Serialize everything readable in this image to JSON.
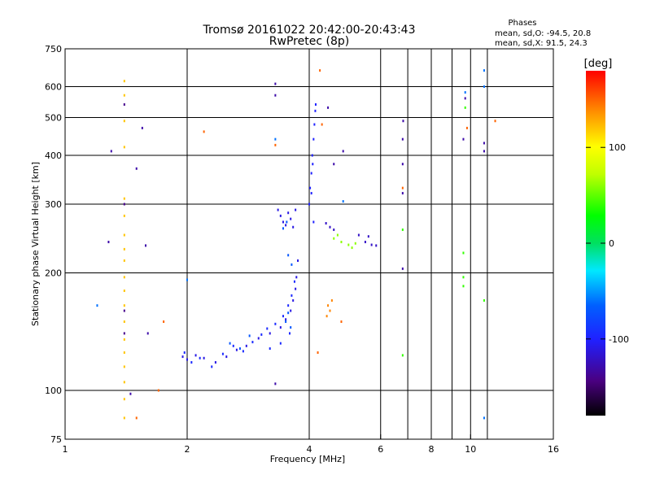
{
  "chart_data": {
    "type": "scatter",
    "title": "Tromsø 20161022 20:42:00-20:43:43",
    "subtitle": "RwPretec (8p)",
    "phase_title": "Phases",
    "phase_stats": [
      "mean, sd,O: -94.5, 20.8",
      "mean, sd,X:  91.5, 24.3"
    ],
    "xlabel": "Frequency [MHz]",
    "ylabel": "Stationary phase Virtual Height [km]",
    "xscale": "log",
    "yscale": "log",
    "xlim": [
      1,
      16
    ],
    "ylim": [
      75,
      750
    ],
    "x_ticks": [
      1,
      2,
      4,
      6,
      8,
      10,
      16
    ],
    "x_tick_labels": [
      "1",
      "2",
      "4",
      "6",
      "8",
      "10",
      "16"
    ],
    "x_grid": [
      2,
      4,
      6,
      7,
      8,
      9,
      10,
      11
    ],
    "y_ticks": [
      75,
      100,
      200,
      300,
      400,
      500,
      600,
      750
    ],
    "y_tick_labels": [
      "75",
      "100",
      "200",
      "300",
      "400",
      "500",
      "600",
      "750"
    ],
    "colorbar": {
      "label": "[deg]",
      "range": [
        -180,
        180
      ],
      "ticks": [
        100,
        0,
        -100
      ],
      "tick_labels": [
        "100",
        "0",
        "-100"
      ]
    },
    "series": [
      {
        "name": "dense_trace_low",
        "phase": -110,
        "points": [
          [
            1.95,
            122
          ],
          [
            2.0,
            120
          ],
          [
            2.1,
            123
          ],
          [
            2.2,
            121
          ],
          [
            2.35,
            118
          ],
          [
            2.5,
            122
          ],
          [
            2.65,
            127
          ],
          [
            2.8,
            130
          ],
          [
            3.0,
            136
          ],
          [
            3.2,
            140
          ],
          [
            3.4,
            145
          ],
          [
            3.5,
            152
          ],
          [
            3.6,
            160
          ],
          [
            3.65,
            170
          ],
          [
            3.7,
            182
          ],
          [
            3.72,
            195
          ],
          [
            3.75,
            215
          ]
        ]
      },
      {
        "name": "dense_trace_mid",
        "phase": -95,
        "points": [
          [
            1.97,
            125
          ],
          [
            2.05,
            118
          ],
          [
            2.15,
            121
          ],
          [
            2.3,
            115
          ],
          [
            2.45,
            124
          ],
          [
            2.6,
            130
          ],
          [
            2.75,
            126
          ],
          [
            2.9,
            133
          ],
          [
            3.05,
            139
          ],
          [
            3.15,
            144
          ],
          [
            3.3,
            148
          ],
          [
            3.45,
            155
          ],
          [
            3.55,
            165
          ],
          [
            3.62,
            175
          ],
          [
            3.68,
            190
          ],
          [
            3.58,
            140
          ],
          [
            3.4,
            132
          ],
          [
            3.2,
            128
          ]
        ]
      },
      {
        "name": "dense_trace_cyan",
        "phase": -70,
        "points": [
          [
            2.55,
            132
          ],
          [
            2.7,
            128
          ],
          [
            2.85,
            138
          ],
          [
            3.5,
            150
          ],
          [
            3.6,
            145
          ],
          [
            3.55,
            158
          ],
          [
            3.62,
            210
          ],
          [
            3.55,
            222
          ],
          [
            3.45,
            260
          ],
          [
            3.52,
            270
          ]
        ]
      },
      {
        "name": "f2_cusp",
        "phase": -110,
        "points": [
          [
            3.35,
            290
          ],
          [
            3.4,
            280
          ],
          [
            3.45,
            270
          ],
          [
            3.5,
            265
          ],
          [
            3.55,
            285
          ],
          [
            3.6,
            275
          ],
          [
            3.65,
            262
          ],
          [
            3.7,
            290
          ]
        ]
      },
      {
        "name": "f2_vertical",
        "phase": -100,
        "points": [
          [
            4.0,
            300
          ],
          [
            4.02,
            330
          ],
          [
            4.05,
            360
          ],
          [
            4.07,
            400
          ],
          [
            4.1,
            440
          ],
          [
            4.12,
            480
          ],
          [
            4.14,
            520
          ],
          [
            4.15,
            540
          ],
          [
            4.08,
            380
          ],
          [
            4.05,
            320
          ],
          [
            4.1,
            270
          ]
        ]
      },
      {
        "name": "x_trace",
        "phase": 60,
        "points": [
          [
            4.6,
            245
          ],
          [
            4.8,
            240
          ],
          [
            5.0,
            236
          ],
          [
            5.1,
            232
          ],
          [
            5.2,
            238
          ],
          [
            4.7,
            250
          ]
        ]
      },
      {
        "name": "x_trace_dark",
        "phase": -120,
        "points": [
          [
            4.4,
            268
          ],
          [
            4.5,
            262
          ],
          [
            4.6,
            258
          ],
          [
            5.3,
            250
          ],
          [
            5.5,
            240
          ],
          [
            5.7,
            236
          ],
          [
            5.85,
            235
          ],
          [
            5.6,
            248
          ]
        ]
      },
      {
        "name": "x_orange_low",
        "phase": 140,
        "points": [
          [
            4.45,
            165
          ],
          [
            4.5,
            160
          ],
          [
            4.42,
            155
          ],
          [
            4.55,
            170
          ]
        ]
      },
      {
        "name": "vertical_line_1_4",
        "phase": 120,
        "points": [
          [
            1.4,
            85
          ],
          [
            1.4,
            95
          ],
          [
            1.4,
            105
          ],
          [
            1.4,
            115
          ],
          [
            1.4,
            125
          ],
          [
            1.4,
            135
          ],
          [
            1.4,
            150
          ],
          [
            1.4,
            165
          ],
          [
            1.4,
            180
          ],
          [
            1.4,
            195
          ],
          [
            1.4,
            215
          ],
          [
            1.4,
            230
          ],
          [
            1.4,
            250
          ],
          [
            1.4,
            280
          ],
          [
            1.4,
            310
          ],
          [
            1.4,
            420
          ],
          [
            1.4,
            490
          ],
          [
            1.4,
            570
          ],
          [
            1.4,
            620
          ]
        ]
      },
      {
        "name": "vertical_line_1_4_dark",
        "phase": -140,
        "points": [
          [
            1.4,
            160
          ],
          [
            1.4,
            140
          ],
          [
            1.4,
            300
          ],
          [
            1.4,
            540
          ]
        ]
      },
      {
        "name": "scattered_dark",
        "phase": -130,
        "points": [
          [
            1.3,
            410
          ],
          [
            1.28,
            240
          ],
          [
            1.5,
            370
          ],
          [
            1.55,
            470
          ],
          [
            1.58,
            235
          ],
          [
            1.45,
            98
          ],
          [
            1.6,
            140
          ],
          [
            3.3,
            610
          ],
          [
            3.3,
            570
          ],
          [
            3.3,
            104
          ],
          [
            4.45,
            530
          ],
          [
            4.6,
            380
          ],
          [
            4.85,
            410
          ],
          [
            6.8,
            380
          ],
          [
            6.8,
            320
          ],
          [
            6.8,
            205
          ],
          [
            6.82,
            490
          ],
          [
            6.8,
            440
          ],
          [
            9.7,
            560
          ],
          [
            9.6,
            440
          ],
          [
            10.8,
            430
          ],
          [
            10.8,
            410
          ]
        ]
      },
      {
        "name": "scattered_warm",
        "phase": 150,
        "points": [
          [
            2.2,
            460
          ],
          [
            1.75,
            150
          ],
          [
            1.7,
            100
          ],
          [
            1.5,
            85
          ],
          [
            4.25,
            660
          ],
          [
            3.3,
            425
          ],
          [
            4.3,
            480
          ],
          [
            9.8,
            470
          ],
          [
            11.5,
            490
          ],
          [
            6.8,
            330
          ],
          [
            4.2,
            125
          ],
          [
            4.8,
            150
          ]
        ]
      },
      {
        "name": "scattered_green",
        "phase": 40,
        "points": [
          [
            6.8,
            258
          ],
          [
            6.8,
            123
          ],
          [
            9.6,
            225
          ],
          [
            9.6,
            195
          ],
          [
            9.6,
            185
          ],
          [
            10.8,
            170
          ],
          [
            9.7,
            530
          ]
        ]
      },
      {
        "name": "scattered_cyan",
        "phase": -60,
        "points": [
          [
            1.2,
            165
          ],
          [
            3.3,
            440
          ],
          [
            4.85,
            305
          ],
          [
            9.7,
            580
          ],
          [
            10.8,
            660
          ],
          [
            10.8,
            600
          ],
          [
            10.8,
            85
          ],
          [
            2.0,
            192
          ]
        ]
      }
    ]
  }
}
